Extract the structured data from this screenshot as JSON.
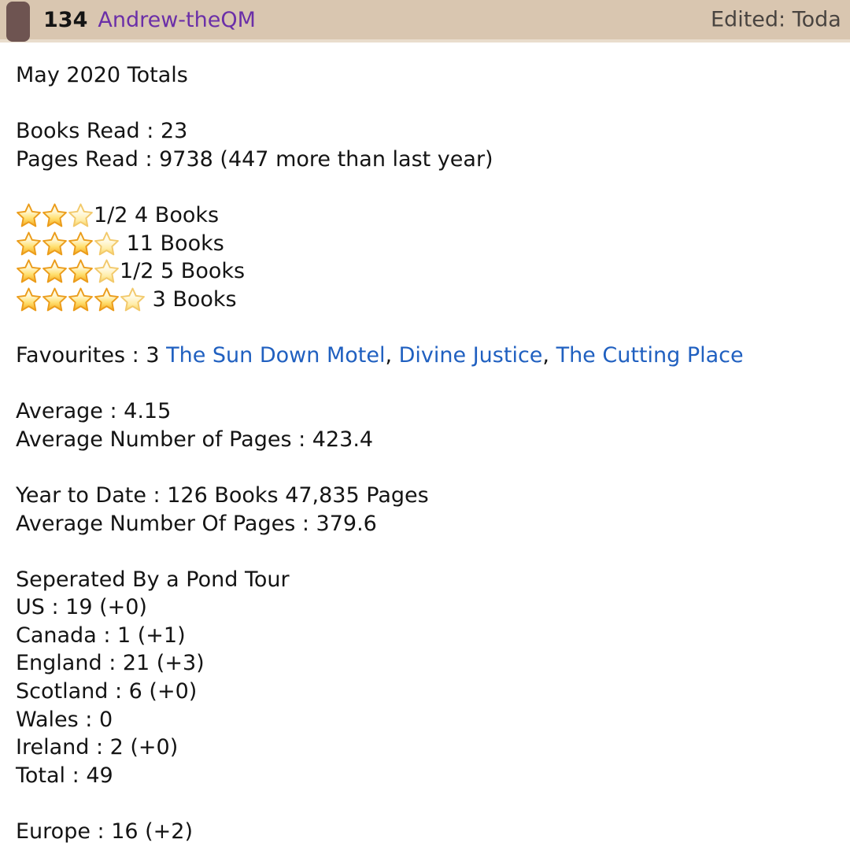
{
  "header": {
    "post_number": "134",
    "username": "Andrew-theQM",
    "edited_label": "Edited: Toda",
    "band_color": "#d9c6b0",
    "pin_color": "#6e5451",
    "username_color": "#6b2fa8"
  },
  "post": {
    "title": "May 2020 Totals",
    "totals": {
      "books": "Books Read : 23",
      "pages": "Pages Read : 9738 (447 more than last year)"
    },
    "ratings": [
      {
        "stars": 3,
        "label": "1/2 4 Books"
      },
      {
        "stars": 4,
        "label": " 11 Books"
      },
      {
        "stars": 4,
        "label": "1/2 5 Books"
      },
      {
        "stars": 5,
        "label": " 3 Books"
      }
    ],
    "favourites": {
      "prefix": "Favourites : 3 ",
      "separator": ", ",
      "links": [
        "The Sun Down Motel",
        "Divine Justice",
        "The Cutting Place"
      ]
    },
    "averages": {
      "rating": "Average : 4.15",
      "pages": "Average Number of Pages : 423.4"
    },
    "year_to_date": {
      "totals": "Year to Date : 126 Books 47,835 Pages",
      "avg_pages": "Average Number Of Pages : 379.6"
    },
    "pond_tour": {
      "title": "Seperated By a Pond Tour",
      "lines": [
        "US : 19 (+0)",
        "Canada : 1 (+1)",
        "England : 21 (+3)",
        "Scotland : 6 (+0)",
        "Wales : 0",
        "Ireland : 2 (+0)",
        "Total : 49"
      ]
    },
    "europe": "Europe : 16 (+2)"
  },
  "colors": {
    "link_blue": "#2060c0",
    "text": "#141414",
    "edited_gray": "#494440"
  }
}
